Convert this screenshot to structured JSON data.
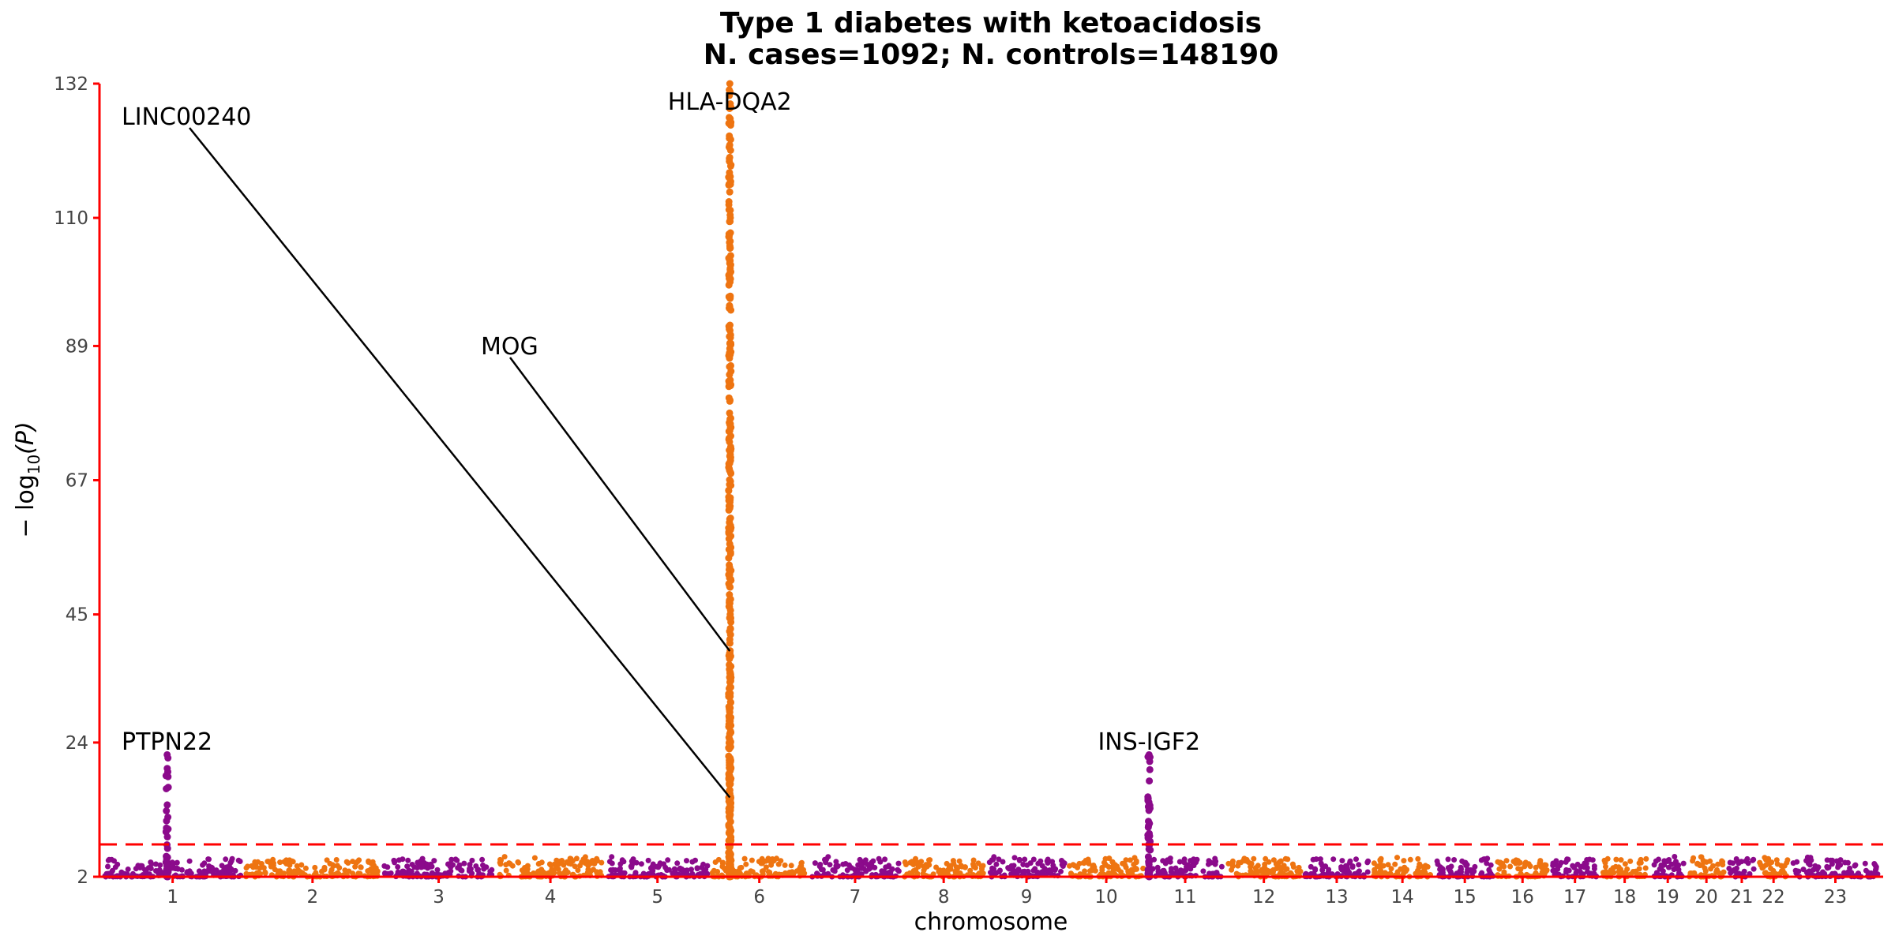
{
  "chart_data": {
    "type": "scatter",
    "title": "Type 1 diabetes with ketoacidosis",
    "subtitle": "N. cases=1092; N. controls=148190",
    "xlabel": "chromosome",
    "ylabel_prefix": "− log",
    "ylabel_sub": "10",
    "ylabel_suffix": "(P)",
    "ylim": [
      2,
      132
    ],
    "yticks": [
      2,
      24,
      45,
      67,
      89,
      110,
      132
    ],
    "significance_line": 7.3,
    "chromosomes": [
      {
        "label": "1",
        "size": 248
      },
      {
        "label": "2",
        "size": 242
      },
      {
        "label": "3",
        "size": 198
      },
      {
        "label": "4",
        "size": 190
      },
      {
        "label": "5",
        "size": 181
      },
      {
        "label": "6",
        "size": 171
      },
      {
        "label": "7",
        "size": 159
      },
      {
        "label": "8",
        "size": 145
      },
      {
        "label": "9",
        "size": 138
      },
      {
        "label": "10",
        "size": 134
      },
      {
        "label": "11",
        "size": 135
      },
      {
        "label": "12",
        "size": 133
      },
      {
        "label": "13",
        "size": 114
      },
      {
        "label": "14",
        "size": 107
      },
      {
        "label": "15",
        "size": 102
      },
      {
        "label": "16",
        "size": 90
      },
      {
        "label": "17",
        "size": 83
      },
      {
        "label": "18",
        "size": 80
      },
      {
        "label": "19",
        "size": 59
      },
      {
        "label": "20",
        "size": 64
      },
      {
        "label": "21",
        "size": 47
      },
      {
        "label": "22",
        "size": 51
      },
      {
        "label": "23",
        "size": 156
      }
    ],
    "peaks": [
      {
        "chrom": "1",
        "pos": 114,
        "max": 22
      },
      {
        "chrom": "6",
        "pos": 32,
        "max": 132
      },
      {
        "chrom": "11",
        "pos": 2,
        "max": 22
      }
    ],
    "labels": [
      {
        "text": "PTPN22",
        "chrom": "1",
        "pos": 114,
        "y": 22
      },
      {
        "text": "LINC00240",
        "chrom": "6",
        "pos": 32,
        "y": 15
      },
      {
        "text": "MOG",
        "chrom": "6",
        "pos": 32,
        "y": 39
      },
      {
        "text": "HLA-DQA2",
        "chrom": "6",
        "pos": 32,
        "y": 132
      },
      {
        "text": "INS-IGF2",
        "chrom": "11",
        "pos": 2,
        "y": 22
      }
    ],
    "colors": {
      "odd": "#8B0A8B",
      "even": "#EE7411",
      "axis": "#FF0000",
      "threshold": "#FF0000"
    }
  }
}
